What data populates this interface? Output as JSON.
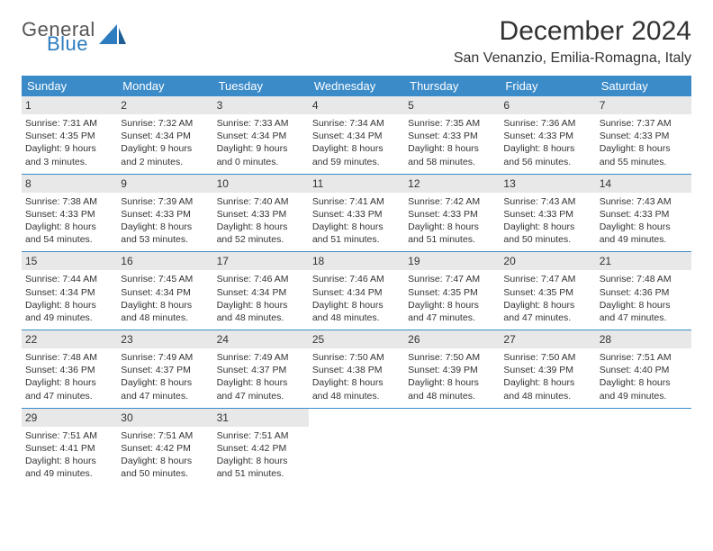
{
  "brand": {
    "general": "General",
    "blue": "Blue"
  },
  "title": "December 2024",
  "location": "San Venanzio, Emilia-Romagna, Italy",
  "colors": {
    "header_bg": "#3b8bc9",
    "header_text": "#ffffff",
    "daynum_bg": "#e8e8e8",
    "rule": "#3b8bc9",
    "body_text": "#333333",
    "brand_blue": "#2e7cc0",
    "brand_gray": "#555555",
    "page_bg": "#ffffff"
  },
  "weekdays": [
    "Sunday",
    "Monday",
    "Tuesday",
    "Wednesday",
    "Thursday",
    "Friday",
    "Saturday"
  ],
  "weeks": [
    [
      {
        "n": "1",
        "sr": "Sunrise: 7:31 AM",
        "ss": "Sunset: 4:35 PM",
        "d1": "Daylight: 9 hours",
        "d2": "and 3 minutes."
      },
      {
        "n": "2",
        "sr": "Sunrise: 7:32 AM",
        "ss": "Sunset: 4:34 PM",
        "d1": "Daylight: 9 hours",
        "d2": "and 2 minutes."
      },
      {
        "n": "3",
        "sr": "Sunrise: 7:33 AM",
        "ss": "Sunset: 4:34 PM",
        "d1": "Daylight: 9 hours",
        "d2": "and 0 minutes."
      },
      {
        "n": "4",
        "sr": "Sunrise: 7:34 AM",
        "ss": "Sunset: 4:34 PM",
        "d1": "Daylight: 8 hours",
        "d2": "and 59 minutes."
      },
      {
        "n": "5",
        "sr": "Sunrise: 7:35 AM",
        "ss": "Sunset: 4:33 PM",
        "d1": "Daylight: 8 hours",
        "d2": "and 58 minutes."
      },
      {
        "n": "6",
        "sr": "Sunrise: 7:36 AM",
        "ss": "Sunset: 4:33 PM",
        "d1": "Daylight: 8 hours",
        "d2": "and 56 minutes."
      },
      {
        "n": "7",
        "sr": "Sunrise: 7:37 AM",
        "ss": "Sunset: 4:33 PM",
        "d1": "Daylight: 8 hours",
        "d2": "and 55 minutes."
      }
    ],
    [
      {
        "n": "8",
        "sr": "Sunrise: 7:38 AM",
        "ss": "Sunset: 4:33 PM",
        "d1": "Daylight: 8 hours",
        "d2": "and 54 minutes."
      },
      {
        "n": "9",
        "sr": "Sunrise: 7:39 AM",
        "ss": "Sunset: 4:33 PM",
        "d1": "Daylight: 8 hours",
        "d2": "and 53 minutes."
      },
      {
        "n": "10",
        "sr": "Sunrise: 7:40 AM",
        "ss": "Sunset: 4:33 PM",
        "d1": "Daylight: 8 hours",
        "d2": "and 52 minutes."
      },
      {
        "n": "11",
        "sr": "Sunrise: 7:41 AM",
        "ss": "Sunset: 4:33 PM",
        "d1": "Daylight: 8 hours",
        "d2": "and 51 minutes."
      },
      {
        "n": "12",
        "sr": "Sunrise: 7:42 AM",
        "ss": "Sunset: 4:33 PM",
        "d1": "Daylight: 8 hours",
        "d2": "and 51 minutes."
      },
      {
        "n": "13",
        "sr": "Sunrise: 7:43 AM",
        "ss": "Sunset: 4:33 PM",
        "d1": "Daylight: 8 hours",
        "d2": "and 50 minutes."
      },
      {
        "n": "14",
        "sr": "Sunrise: 7:43 AM",
        "ss": "Sunset: 4:33 PM",
        "d1": "Daylight: 8 hours",
        "d2": "and 49 minutes."
      }
    ],
    [
      {
        "n": "15",
        "sr": "Sunrise: 7:44 AM",
        "ss": "Sunset: 4:34 PM",
        "d1": "Daylight: 8 hours",
        "d2": "and 49 minutes."
      },
      {
        "n": "16",
        "sr": "Sunrise: 7:45 AM",
        "ss": "Sunset: 4:34 PM",
        "d1": "Daylight: 8 hours",
        "d2": "and 48 minutes."
      },
      {
        "n": "17",
        "sr": "Sunrise: 7:46 AM",
        "ss": "Sunset: 4:34 PM",
        "d1": "Daylight: 8 hours",
        "d2": "and 48 minutes."
      },
      {
        "n": "18",
        "sr": "Sunrise: 7:46 AM",
        "ss": "Sunset: 4:34 PM",
        "d1": "Daylight: 8 hours",
        "d2": "and 48 minutes."
      },
      {
        "n": "19",
        "sr": "Sunrise: 7:47 AM",
        "ss": "Sunset: 4:35 PM",
        "d1": "Daylight: 8 hours",
        "d2": "and 47 minutes."
      },
      {
        "n": "20",
        "sr": "Sunrise: 7:47 AM",
        "ss": "Sunset: 4:35 PM",
        "d1": "Daylight: 8 hours",
        "d2": "and 47 minutes."
      },
      {
        "n": "21",
        "sr": "Sunrise: 7:48 AM",
        "ss": "Sunset: 4:36 PM",
        "d1": "Daylight: 8 hours",
        "d2": "and 47 minutes."
      }
    ],
    [
      {
        "n": "22",
        "sr": "Sunrise: 7:48 AM",
        "ss": "Sunset: 4:36 PM",
        "d1": "Daylight: 8 hours",
        "d2": "and 47 minutes."
      },
      {
        "n": "23",
        "sr": "Sunrise: 7:49 AM",
        "ss": "Sunset: 4:37 PM",
        "d1": "Daylight: 8 hours",
        "d2": "and 47 minutes."
      },
      {
        "n": "24",
        "sr": "Sunrise: 7:49 AM",
        "ss": "Sunset: 4:37 PM",
        "d1": "Daylight: 8 hours",
        "d2": "and 47 minutes."
      },
      {
        "n": "25",
        "sr": "Sunrise: 7:50 AM",
        "ss": "Sunset: 4:38 PM",
        "d1": "Daylight: 8 hours",
        "d2": "and 48 minutes."
      },
      {
        "n": "26",
        "sr": "Sunrise: 7:50 AM",
        "ss": "Sunset: 4:39 PM",
        "d1": "Daylight: 8 hours",
        "d2": "and 48 minutes."
      },
      {
        "n": "27",
        "sr": "Sunrise: 7:50 AM",
        "ss": "Sunset: 4:39 PM",
        "d1": "Daylight: 8 hours",
        "d2": "and 48 minutes."
      },
      {
        "n": "28",
        "sr": "Sunrise: 7:51 AM",
        "ss": "Sunset: 4:40 PM",
        "d1": "Daylight: 8 hours",
        "d2": "and 49 minutes."
      }
    ],
    [
      {
        "n": "29",
        "sr": "Sunrise: 7:51 AM",
        "ss": "Sunset: 4:41 PM",
        "d1": "Daylight: 8 hours",
        "d2": "and 49 minutes."
      },
      {
        "n": "30",
        "sr": "Sunrise: 7:51 AM",
        "ss": "Sunset: 4:42 PM",
        "d1": "Daylight: 8 hours",
        "d2": "and 50 minutes."
      },
      {
        "n": "31",
        "sr": "Sunrise: 7:51 AM",
        "ss": "Sunset: 4:42 PM",
        "d1": "Daylight: 8 hours",
        "d2": "and 51 minutes."
      },
      null,
      null,
      null,
      null
    ]
  ]
}
